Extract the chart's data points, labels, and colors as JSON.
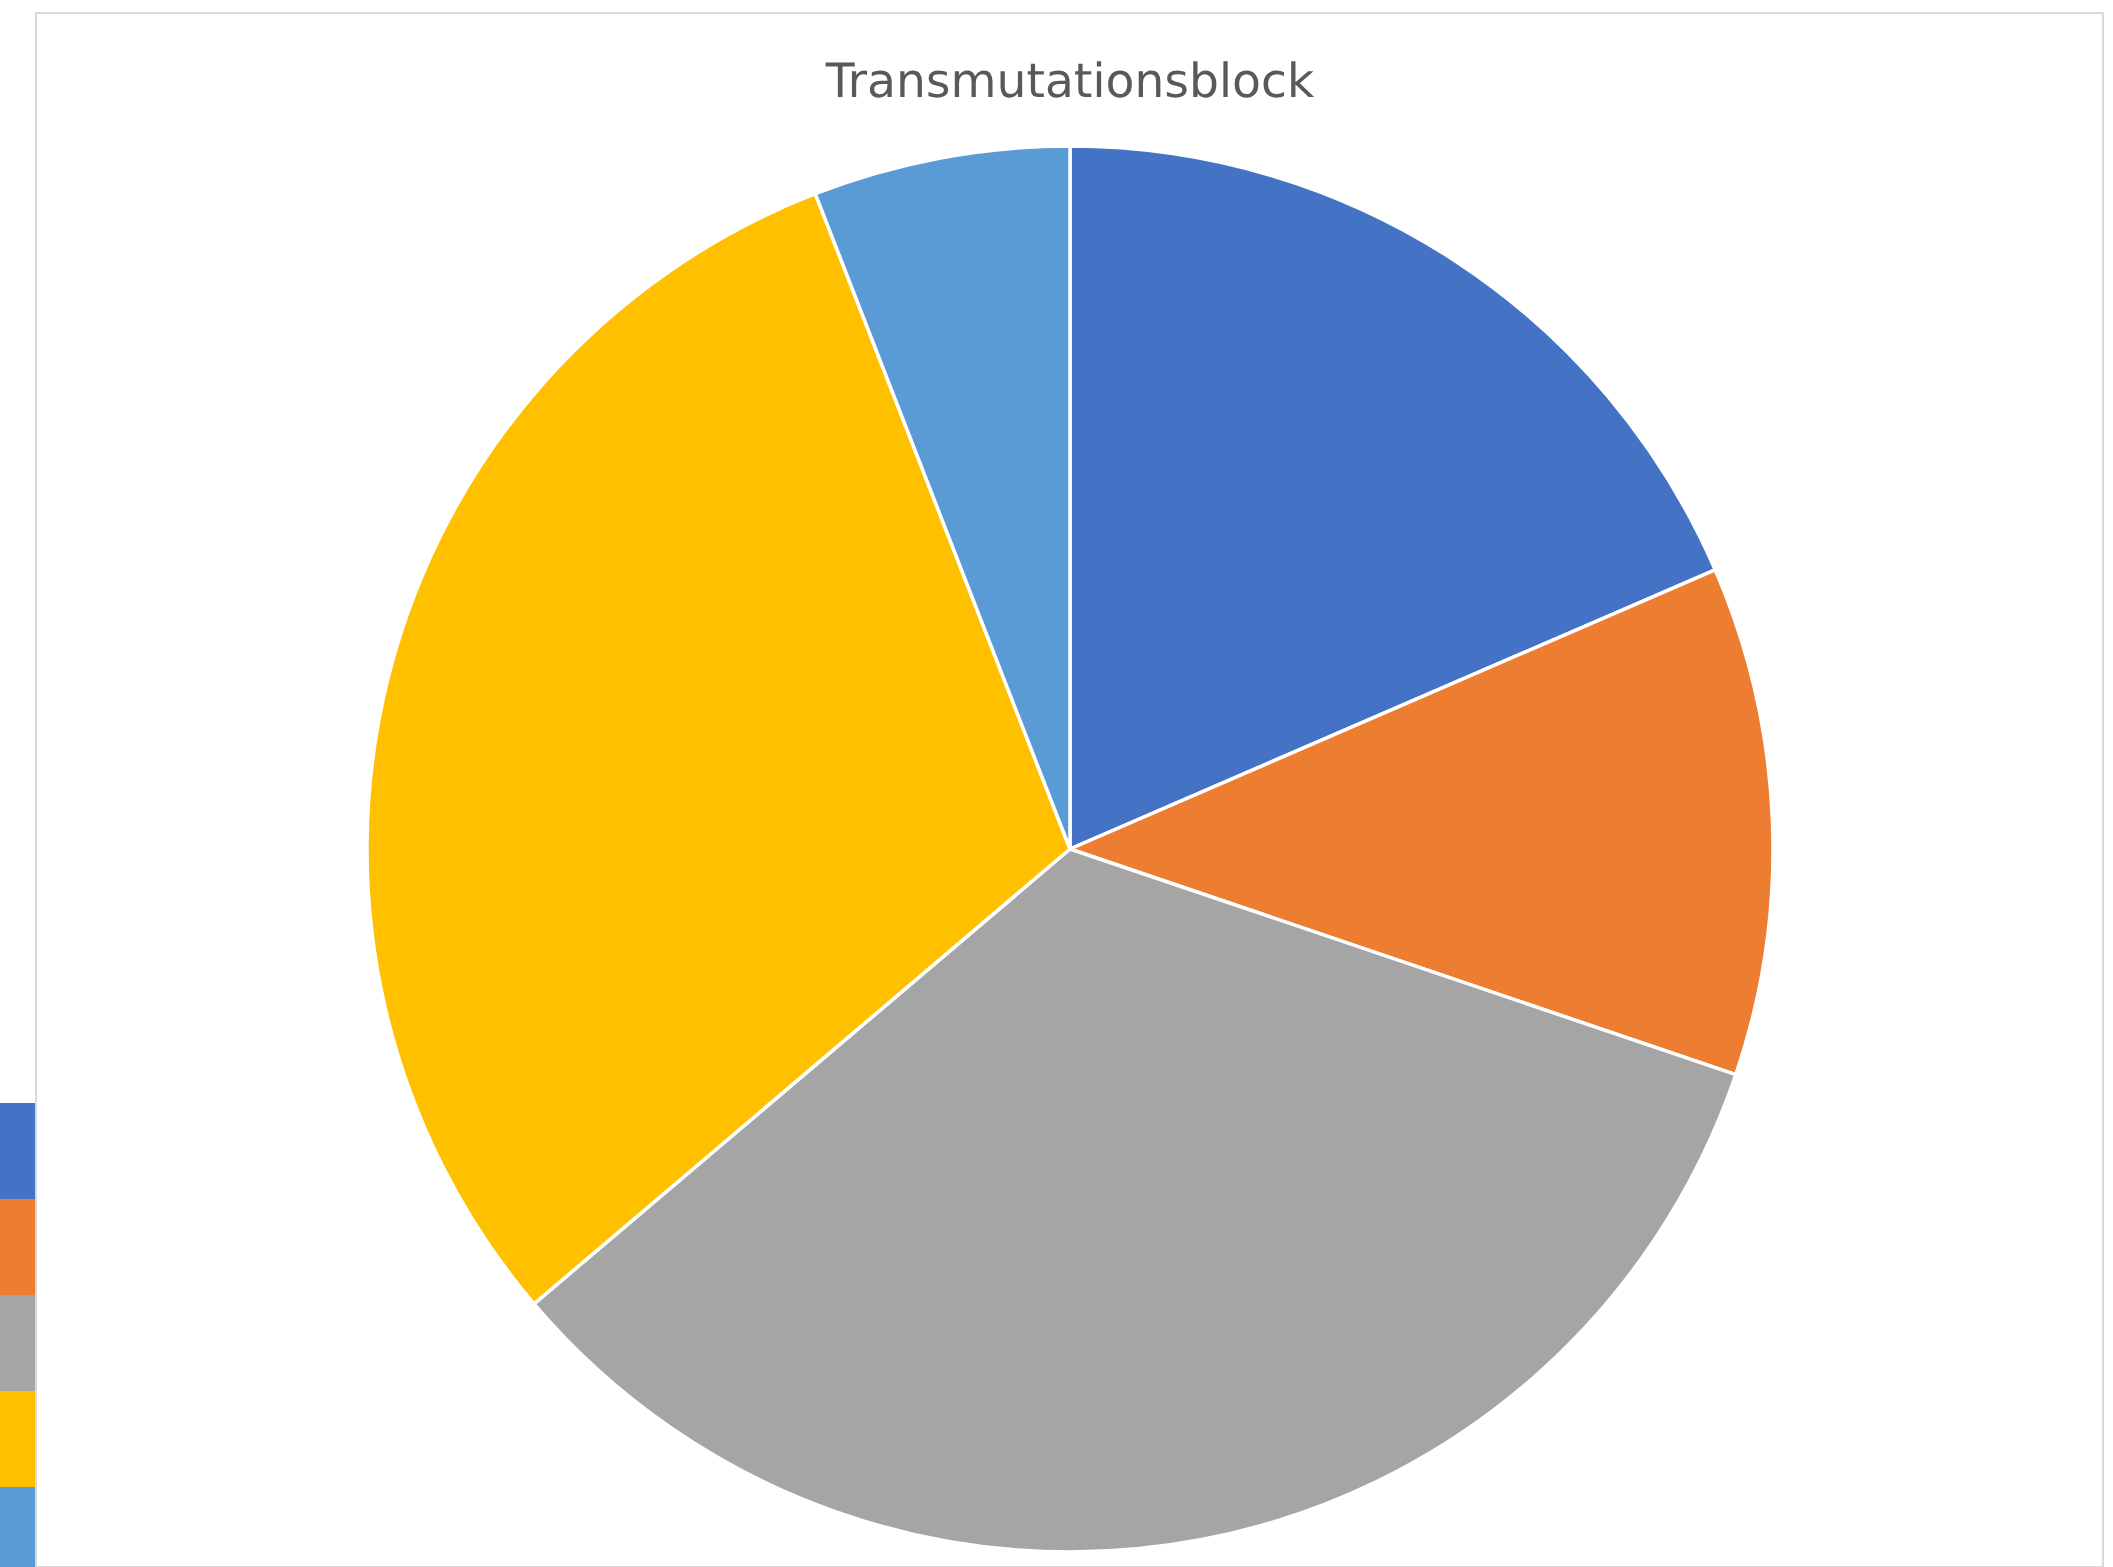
{
  "chart_data": {
    "type": "pie",
    "title": "Transmutationsblock",
    "categories": [
      null,
      null,
      null,
      null,
      null
    ],
    "values": [
      18.5,
      11.7,
      33.6,
      30.3,
      5.9
    ],
    "colors": [
      "#4472c4",
      "#ed7d31",
      "#a5a5a5",
      "#ffc000",
      "#5b9bd5"
    ]
  }
}
